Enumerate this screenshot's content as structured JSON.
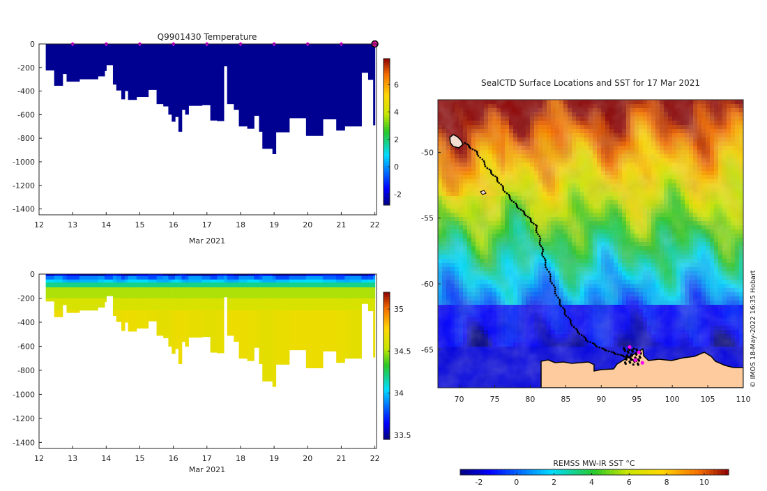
{
  "chart_data": [
    {
      "type": "heatmap",
      "title": "Q9901430  Temperature",
      "xlabel": "Mar 2021",
      "ylabel": "",
      "x_ticks": [
        "12",
        "13",
        "14",
        "15",
        "16",
        "17",
        "18",
        "19",
        "20",
        "21",
        "22"
      ],
      "y_ticks": [
        "0",
        "-200",
        "-400",
        "-600",
        "-800",
        "-1000",
        "-1200",
        "-1400"
      ],
      "xlim": [
        12,
        22.05
      ],
      "ylim": [
        -1450,
        0
      ],
      "colorbar": {
        "min": -2.8,
        "max": 7.9,
        "ticks": [
          "-2",
          "0",
          "2",
          "4",
          "6"
        ],
        "values": [
          -2,
          0,
          2,
          4,
          6
        ]
      },
      "surface_markers_x": [
        13,
        14,
        15,
        16,
        17,
        18,
        19,
        20,
        21,
        22
      ],
      "profile_depths": [
        [
          12.2,
          12.45,
          225
        ],
        [
          12.45,
          12.7,
          355
        ],
        [
          12.7,
          12.82,
          255
        ],
        [
          12.82,
          13.2,
          320
        ],
        [
          13.2,
          13.75,
          300
        ],
        [
          13.75,
          13.95,
          275
        ],
        [
          13.95,
          14.0,
          230
        ],
        [
          14.0,
          14.2,
          180
        ],
        [
          14.2,
          14.3,
          345
        ],
        [
          14.3,
          14.45,
          395
        ],
        [
          14.45,
          14.55,
          470
        ],
        [
          14.55,
          14.65,
          400
        ],
        [
          14.65,
          14.9,
          475
        ],
        [
          14.9,
          15.25,
          450
        ],
        [
          15.25,
          15.5,
          390
        ],
        [
          15.5,
          15.7,
          510
        ],
        [
          15.7,
          15.85,
          530
        ],
        [
          15.85,
          15.95,
          600
        ],
        [
          15.95,
          16.05,
          660
        ],
        [
          16.05,
          16.15,
          620
        ],
        [
          16.15,
          16.25,
          745
        ],
        [
          16.25,
          16.35,
          560
        ],
        [
          16.35,
          16.45,
          600
        ],
        [
          16.45,
          16.85,
          525
        ],
        [
          16.85,
          17.1,
          520
        ],
        [
          17.1,
          17.3,
          650
        ],
        [
          17.3,
          17.5,
          655
        ],
        [
          17.5,
          17.6,
          190
        ],
        [
          17.6,
          17.8,
          510
        ],
        [
          17.8,
          17.95,
          560
        ],
        [
          17.95,
          18.2,
          700
        ],
        [
          18.2,
          18.4,
          720
        ],
        [
          18.4,
          18.55,
          610
        ],
        [
          18.55,
          18.65,
          745
        ],
        [
          18.65,
          18.95,
          890
        ],
        [
          18.95,
          19.05,
          935
        ],
        [
          19.05,
          19.45,
          750
        ],
        [
          19.45,
          19.95,
          630
        ],
        [
          19.95,
          20.45,
          780
        ],
        [
          20.45,
          20.85,
          640
        ],
        [
          20.85,
          21.1,
          735
        ],
        [
          21.1,
          21.25,
          700
        ],
        [
          21.25,
          21.6,
          700
        ],
        [
          21.6,
          21.8,
          245
        ],
        [
          21.8,
          21.95,
          305
        ],
        [
          21.95,
          22.0,
          690
        ]
      ]
    },
    {
      "type": "heatmap",
      "title": "",
      "xlabel": "Mar 2021",
      "ylabel": "",
      "x_ticks": [
        "12",
        "13",
        "14",
        "15",
        "16",
        "17",
        "18",
        "19",
        "20",
        "21",
        "22"
      ],
      "y_ticks": [
        "0",
        "-200",
        "-400",
        "-600",
        "-800",
        "-1000",
        "-1200",
        "-1400"
      ],
      "xlim": [
        12,
        22.05
      ],
      "ylim": [
        -1450,
        0
      ],
      "colorbar": {
        "min": 33.45,
        "max": 35.2,
        "ticks": [
          "33.5",
          "34",
          "34.5",
          "35"
        ],
        "values": [
          33.5,
          34,
          34.5,
          35
        ]
      }
    },
    {
      "type": "heatmap",
      "title": "SealCTD Surface Locations and SST for 17 Mar 2021",
      "xlabel": "",
      "ylabel": "",
      "x_ticks": [
        "70",
        "75",
        "80",
        "85",
        "90",
        "95",
        "100",
        "105",
        "110"
      ],
      "y_ticks": [
        "-50",
        "-55",
        "-60",
        "-65"
      ],
      "xlim": [
        67,
        110
      ],
      "ylim": [
        -67.9,
        -46.0
      ],
      "colorbar": {
        "label": "REMSS MW-IR SST °C",
        "min": -3,
        "max": 11.3,
        "ticks": [
          "-2",
          "0",
          "2",
          "4",
          "6",
          "8",
          "10"
        ],
        "values": [
          -2,
          0,
          2,
          4,
          6,
          8,
          10
        ]
      },
      "annotation": "© IMOS 18-May-2022 16:35 Hobart",
      "track": [
        [
          70.8,
          -49.3
        ],
        [
          72.5,
          -50.0
        ],
        [
          74.0,
          -51.2
        ],
        [
          75.3,
          -52.0
        ],
        [
          76.5,
          -53.0
        ],
        [
          78.0,
          -54.0
        ],
        [
          79.5,
          -54.8
        ],
        [
          80.8,
          -55.6
        ],
        [
          81.5,
          -57.0
        ],
        [
          82.0,
          -58.2
        ],
        [
          83.0,
          -59.8
        ],
        [
          84.0,
          -61.2
        ],
        [
          85.0,
          -62.3
        ],
        [
          86.3,
          -63.4
        ],
        [
          88.0,
          -64.3
        ],
        [
          90.0,
          -64.9
        ],
        [
          92.0,
          -65.3
        ],
        [
          93.8,
          -65.6
        ],
        [
          95.0,
          -65.9
        ]
      ],
      "recent_locations": [
        [
          94.0,
          -64.8
        ],
        [
          94.8,
          -65.8
        ],
        [
          95.3,
          -65.2
        ],
        [
          95.8,
          -66.0
        ]
      ]
    }
  ]
}
